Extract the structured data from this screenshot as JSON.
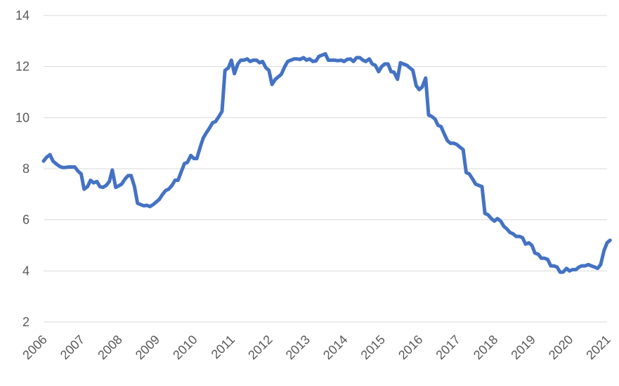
{
  "chart_data": {
    "type": "line",
    "title": "",
    "xlabel": "",
    "ylabel": "",
    "ylim": [
      2,
      14
    ],
    "xlim": [
      2006,
      2021
    ],
    "yticks": [
      2,
      4,
      6,
      8,
      10,
      12,
      14
    ],
    "xticks": [
      "2006",
      "2007",
      "2008",
      "2009",
      "2010",
      "2011",
      "2012",
      "2013",
      "2014",
      "2015",
      "2016",
      "2017",
      "2018",
      "2019",
      "2020",
      "2021"
    ],
    "grid": "horizontal",
    "legend": "none",
    "series": [
      {
        "color": "#4472c4",
        "points": [
          [
            2006.0,
            8.3
          ],
          [
            2006.08,
            8.45
          ],
          [
            2006.17,
            8.55
          ],
          [
            2006.25,
            8.3
          ],
          [
            2006.33,
            8.2
          ],
          [
            2006.42,
            8.1
          ],
          [
            2006.5,
            8.05
          ],
          [
            2006.58,
            8.05
          ],
          [
            2006.67,
            8.07
          ],
          [
            2006.75,
            8.07
          ],
          [
            2006.83,
            8.07
          ],
          [
            2006.92,
            7.9
          ],
          [
            2007.0,
            7.8
          ],
          [
            2007.08,
            7.2
          ],
          [
            2007.17,
            7.3
          ],
          [
            2007.25,
            7.55
          ],
          [
            2007.33,
            7.45
          ],
          [
            2007.42,
            7.5
          ],
          [
            2007.5,
            7.3
          ],
          [
            2007.58,
            7.27
          ],
          [
            2007.67,
            7.35
          ],
          [
            2007.75,
            7.5
          ],
          [
            2007.83,
            7.95
          ],
          [
            2007.92,
            7.27
          ],
          [
            2008.0,
            7.33
          ],
          [
            2008.08,
            7.4
          ],
          [
            2008.17,
            7.6
          ],
          [
            2008.25,
            7.73
          ],
          [
            2008.33,
            7.73
          ],
          [
            2008.42,
            7.3
          ],
          [
            2008.5,
            6.65
          ],
          [
            2008.58,
            6.6
          ],
          [
            2008.67,
            6.55
          ],
          [
            2008.75,
            6.57
          ],
          [
            2008.83,
            6.52
          ],
          [
            2008.92,
            6.6
          ],
          [
            2009.0,
            6.7
          ],
          [
            2009.08,
            6.8
          ],
          [
            2009.17,
            7.0
          ],
          [
            2009.25,
            7.15
          ],
          [
            2009.33,
            7.2
          ],
          [
            2009.42,
            7.35
          ],
          [
            2009.5,
            7.55
          ],
          [
            2009.58,
            7.55
          ],
          [
            2009.67,
            7.9
          ],
          [
            2009.75,
            8.2
          ],
          [
            2009.83,
            8.25
          ],
          [
            2009.92,
            8.52
          ],
          [
            2010.0,
            8.4
          ],
          [
            2010.08,
            8.4
          ],
          [
            2010.17,
            8.85
          ],
          [
            2010.25,
            9.2
          ],
          [
            2010.33,
            9.4
          ],
          [
            2010.42,
            9.6
          ],
          [
            2010.5,
            9.8
          ],
          [
            2010.58,
            9.85
          ],
          [
            2010.67,
            10.05
          ],
          [
            2010.75,
            10.25
          ],
          [
            2010.83,
            11.85
          ],
          [
            2010.92,
            11.95
          ],
          [
            2011.0,
            12.25
          ],
          [
            2011.08,
            11.72
          ],
          [
            2011.17,
            12.1
          ],
          [
            2011.25,
            12.25
          ],
          [
            2011.33,
            12.25
          ],
          [
            2011.42,
            12.3
          ],
          [
            2011.5,
            12.2
          ],
          [
            2011.58,
            12.25
          ],
          [
            2011.67,
            12.25
          ],
          [
            2011.75,
            12.15
          ],
          [
            2011.83,
            12.2
          ],
          [
            2011.92,
            11.95
          ],
          [
            2012.0,
            11.85
          ],
          [
            2012.08,
            11.3
          ],
          [
            2012.17,
            11.5
          ],
          [
            2012.25,
            11.6
          ],
          [
            2012.33,
            11.7
          ],
          [
            2012.42,
            12.0
          ],
          [
            2012.5,
            12.2
          ],
          [
            2012.58,
            12.25
          ],
          [
            2012.67,
            12.3
          ],
          [
            2012.75,
            12.3
          ],
          [
            2012.83,
            12.28
          ],
          [
            2012.92,
            12.35
          ],
          [
            2013.0,
            12.25
          ],
          [
            2013.08,
            12.3
          ],
          [
            2013.17,
            12.2
          ],
          [
            2013.25,
            12.22
          ],
          [
            2013.33,
            12.4
          ],
          [
            2013.42,
            12.45
          ],
          [
            2013.5,
            12.5
          ],
          [
            2013.58,
            12.25
          ],
          [
            2013.67,
            12.25
          ],
          [
            2013.75,
            12.25
          ],
          [
            2013.83,
            12.23
          ],
          [
            2013.92,
            12.25
          ],
          [
            2014.0,
            12.2
          ],
          [
            2014.08,
            12.28
          ],
          [
            2014.17,
            12.3
          ],
          [
            2014.25,
            12.2
          ],
          [
            2014.33,
            12.35
          ],
          [
            2014.42,
            12.35
          ],
          [
            2014.5,
            12.25
          ],
          [
            2014.58,
            12.2
          ],
          [
            2014.67,
            12.3
          ],
          [
            2014.75,
            12.1
          ],
          [
            2014.83,
            12.05
          ],
          [
            2014.92,
            11.8
          ],
          [
            2015.0,
            12.0
          ],
          [
            2015.08,
            12.1
          ],
          [
            2015.17,
            12.1
          ],
          [
            2015.25,
            11.8
          ],
          [
            2015.33,
            11.78
          ],
          [
            2015.42,
            11.5
          ],
          [
            2015.5,
            12.15
          ],
          [
            2015.58,
            12.1
          ],
          [
            2015.67,
            12.05
          ],
          [
            2015.75,
            11.95
          ],
          [
            2015.83,
            11.85
          ],
          [
            2015.92,
            11.25
          ],
          [
            2016.0,
            11.1
          ],
          [
            2016.08,
            11.2
          ],
          [
            2016.17,
            11.55
          ],
          [
            2016.25,
            10.1
          ],
          [
            2016.33,
            10.05
          ],
          [
            2016.42,
            9.95
          ],
          [
            2016.5,
            9.7
          ],
          [
            2016.58,
            9.65
          ],
          [
            2016.67,
            9.35
          ],
          [
            2016.75,
            9.1
          ],
          [
            2016.83,
            9.0
          ],
          [
            2016.92,
            9.0
          ],
          [
            2017.0,
            8.95
          ],
          [
            2017.08,
            8.85
          ],
          [
            2017.17,
            8.75
          ],
          [
            2017.25,
            7.85
          ],
          [
            2017.33,
            7.8
          ],
          [
            2017.42,
            7.6
          ],
          [
            2017.5,
            7.4
          ],
          [
            2017.58,
            7.35
          ],
          [
            2017.67,
            7.3
          ],
          [
            2017.75,
            6.25
          ],
          [
            2017.83,
            6.2
          ],
          [
            2017.92,
            6.05
          ],
          [
            2018.0,
            5.95
          ],
          [
            2018.08,
            6.05
          ],
          [
            2018.17,
            5.95
          ],
          [
            2018.25,
            5.75
          ],
          [
            2018.33,
            5.65
          ],
          [
            2018.42,
            5.5
          ],
          [
            2018.5,
            5.45
          ],
          [
            2018.58,
            5.35
          ],
          [
            2018.67,
            5.35
          ],
          [
            2018.75,
            5.3
          ],
          [
            2018.83,
            5.05
          ],
          [
            2018.92,
            5.1
          ],
          [
            2019.0,
            5.0
          ],
          [
            2019.08,
            4.7
          ],
          [
            2019.17,
            4.65
          ],
          [
            2019.25,
            4.5
          ],
          [
            2019.33,
            4.5
          ],
          [
            2019.42,
            4.45
          ],
          [
            2019.5,
            4.2
          ],
          [
            2019.58,
            4.2
          ],
          [
            2019.67,
            4.15
          ],
          [
            2019.75,
            3.95
          ],
          [
            2019.83,
            3.95
          ],
          [
            2019.92,
            4.1
          ],
          [
            2020.0,
            4.0
          ],
          [
            2020.08,
            4.05
          ],
          [
            2020.17,
            4.05
          ],
          [
            2020.25,
            4.15
          ],
          [
            2020.33,
            4.2
          ],
          [
            2020.42,
            4.2
          ],
          [
            2020.5,
            4.25
          ],
          [
            2020.58,
            4.2
          ],
          [
            2020.67,
            4.15
          ],
          [
            2020.75,
            4.1
          ],
          [
            2020.83,
            4.25
          ],
          [
            2020.92,
            4.8
          ],
          [
            2021.0,
            5.1
          ],
          [
            2021.08,
            5.2
          ]
        ]
      }
    ]
  }
}
